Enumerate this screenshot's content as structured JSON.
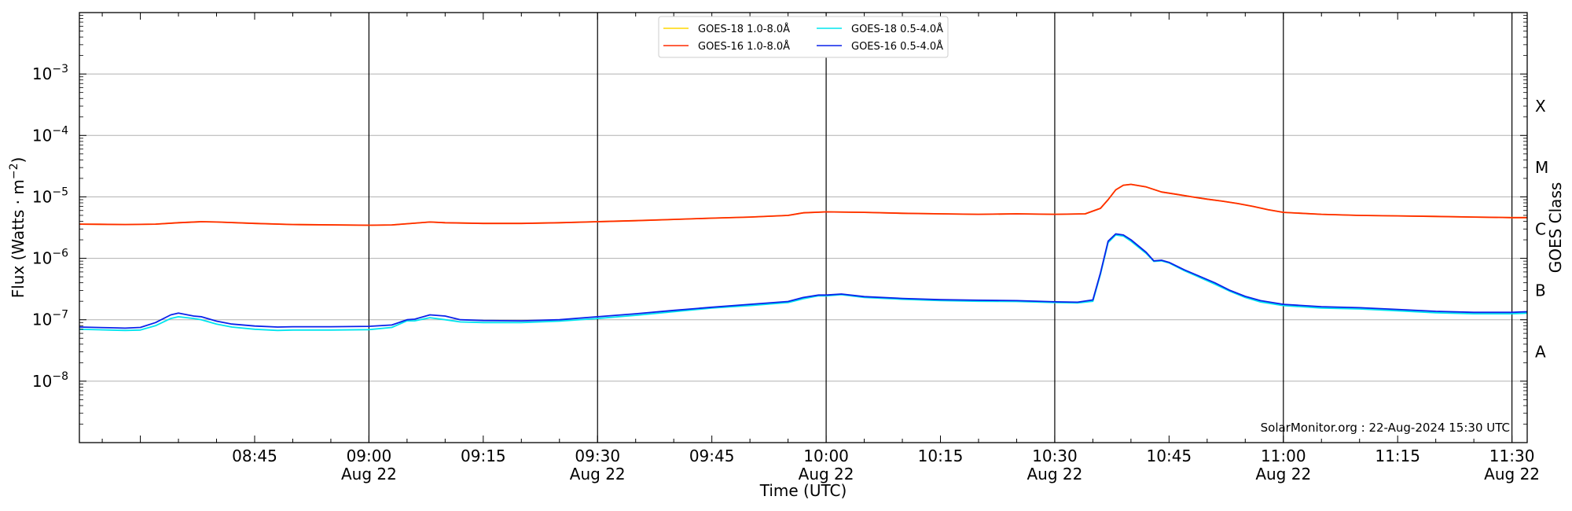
{
  "chart_data": {
    "type": "line",
    "title": "",
    "xlabel": "Time (UTC)",
    "ylabel": "Flux (Watts · m⁻²)",
    "y2label": "GOES Class",
    "yscale": "log",
    "ylim": [
      1e-09,
      0.01
    ],
    "xlim": [
      "08:22",
      "11:32"
    ],
    "grid": "horizontal",
    "legend_position": "top-center",
    "credit": "SolarMonitor.org : 22-Aug-2024 15:30 UTC",
    "ytick_labels": [
      {
        "value": 1e-08,
        "label": "10",
        "exp": "−8"
      },
      {
        "value": 1e-07,
        "label": "10",
        "exp": "−7"
      },
      {
        "value": 1e-06,
        "label": "10",
        "exp": "−6"
      },
      {
        "value": 1e-05,
        "label": "10",
        "exp": "−5"
      },
      {
        "value": 0.0001,
        "label": "10",
        "exp": "−4"
      },
      {
        "value": 0.001,
        "label": "10",
        "exp": "−3"
      }
    ],
    "xtick_labels": [
      {
        "time": "08:45",
        "label": "08:45",
        "date": ""
      },
      {
        "time": "09:00",
        "label": "09:00",
        "date": "Aug 22"
      },
      {
        "time": "09:15",
        "label": "09:15",
        "date": ""
      },
      {
        "time": "09:30",
        "label": "09:30",
        "date": "Aug 22"
      },
      {
        "time": "09:45",
        "label": "09:45",
        "date": ""
      },
      {
        "time": "10:00",
        "label": "10:00",
        "date": "Aug 22"
      },
      {
        "time": "10:15",
        "label": "10:15",
        "date": ""
      },
      {
        "time": "10:30",
        "label": "10:30",
        "date": "Aug 22"
      },
      {
        "time": "10:45",
        "label": "10:45",
        "date": ""
      },
      {
        "time": "11:00",
        "label": "11:00",
        "date": "Aug 22"
      },
      {
        "time": "11:15",
        "label": "11:15",
        "date": ""
      },
      {
        "time": "11:30",
        "label": "11:30",
        "date": "Aug 22"
      }
    ],
    "vertical_lines": [
      "09:00",
      "09:30",
      "10:00",
      "10:30",
      "11:00",
      "11:30"
    ],
    "goes_classes": [
      {
        "label": "A",
        "value": 3e-08
      },
      {
        "label": "B",
        "value": 3e-07
      },
      {
        "label": "C",
        "value": 3e-06
      },
      {
        "label": "M",
        "value": 3e-05
      },
      {
        "label": "X",
        "value": 0.0003
      }
    ],
    "series": [
      {
        "name": "GOES-18 1.0-8.0Å",
        "color": "#ffd700",
        "x": [
          "08:22",
          "08:28",
          "08:32",
          "08:35",
          "08:38",
          "08:40",
          "08:45",
          "08:50",
          "09:00",
          "09:03",
          "09:05",
          "09:08",
          "09:10",
          "09:15",
          "09:20",
          "09:25",
          "09:30",
          "09:35",
          "09:40",
          "09:45",
          "09:50",
          "09:55",
          "09:57",
          "10:00",
          "10:05",
          "10:10",
          "10:15",
          "10:20",
          "10:25",
          "10:30",
          "10:34",
          "10:36",
          "10:37",
          "10:38",
          "10:39",
          "10:40",
          "10:42",
          "10:44",
          "10:46",
          "10:48",
          "10:50",
          "10:52",
          "10:54",
          "10:56",
          "10:58",
          "11:00",
          "11:05",
          "11:10",
          "11:15",
          "11:20",
          "11:25",
          "11:30",
          "11:32"
        ],
        "y": [
          3.6e-06,
          3.55e-06,
          3.6e-06,
          3.8e-06,
          3.95e-06,
          3.9e-06,
          3.7e-06,
          3.55e-06,
          3.45e-06,
          3.5e-06,
          3.65e-06,
          3.9e-06,
          3.8e-06,
          3.7e-06,
          3.7e-06,
          3.8e-06,
          3.95e-06,
          4.1e-06,
          4.3e-06,
          4.5e-06,
          4.7e-06,
          5e-06,
          5.5e-06,
          5.7e-06,
          5.6e-06,
          5.4e-06,
          5.3e-06,
          5.2e-06,
          5.3e-06,
          5.2e-06,
          5.3e-06,
          6.5e-06,
          9e-06,
          1.3e-05,
          1.55e-05,
          1.6e-05,
          1.45e-05,
          1.2e-05,
          1.1e-05,
          1e-05,
          9.2e-06,
          8.5e-06,
          7.8e-06,
          7e-06,
          6.2e-06,
          5.6e-06,
          5.2e-06,
          5e-06,
          4.9e-06,
          4.8e-06,
          4.7e-06,
          4.6e-06,
          4.6e-06
        ]
      },
      {
        "name": "GOES-16 1.0-8.0Å",
        "color": "#ff2a00",
        "x": [
          "08:22",
          "08:28",
          "08:32",
          "08:35",
          "08:38",
          "08:40",
          "08:45",
          "08:50",
          "09:00",
          "09:03",
          "09:05",
          "09:08",
          "09:10",
          "09:15",
          "09:20",
          "09:25",
          "09:30",
          "09:35",
          "09:40",
          "09:45",
          "09:50",
          "09:55",
          "09:57",
          "10:00",
          "10:05",
          "10:10",
          "10:15",
          "10:20",
          "10:25",
          "10:30",
          "10:34",
          "10:36",
          "10:37",
          "10:38",
          "10:39",
          "10:40",
          "10:42",
          "10:44",
          "10:46",
          "10:48",
          "10:50",
          "10:52",
          "10:54",
          "10:56",
          "10:58",
          "11:00",
          "11:05",
          "11:10",
          "11:15",
          "11:20",
          "11:25",
          "11:30",
          "11:32"
        ],
        "y": [
          3.6e-06,
          3.55e-06,
          3.6e-06,
          3.8e-06,
          3.95e-06,
          3.9e-06,
          3.7e-06,
          3.55e-06,
          3.45e-06,
          3.5e-06,
          3.65e-06,
          3.9e-06,
          3.8e-06,
          3.7e-06,
          3.7e-06,
          3.8e-06,
          3.95e-06,
          4.1e-06,
          4.3e-06,
          4.5e-06,
          4.7e-06,
          5e-06,
          5.5e-06,
          5.7e-06,
          5.6e-06,
          5.4e-06,
          5.3e-06,
          5.2e-06,
          5.3e-06,
          5.2e-06,
          5.3e-06,
          6.5e-06,
          9e-06,
          1.3e-05,
          1.55e-05,
          1.6e-05,
          1.45e-05,
          1.2e-05,
          1.1e-05,
          1e-05,
          9.2e-06,
          8.5e-06,
          7.8e-06,
          7e-06,
          6.2e-06,
          5.6e-06,
          5.2e-06,
          5e-06,
          4.9e-06,
          4.8e-06,
          4.7e-06,
          4.6e-06,
          4.6e-06
        ]
      },
      {
        "name": "GOES-18 0.5-4.0Å",
        "color": "#00e5ee",
        "x": [
          "08:22",
          "08:26",
          "08:28",
          "08:30",
          "08:32",
          "08:34",
          "08:35",
          "08:37",
          "08:38",
          "08:40",
          "08:42",
          "08:45",
          "08:48",
          "08:50",
          "08:55",
          "09:00",
          "09:03",
          "09:05",
          "09:06",
          "09:08",
          "09:10",
          "09:12",
          "09:15",
          "09:20",
          "09:25",
          "09:30",
          "09:35",
          "09:40",
          "09:45",
          "09:50",
          "09:55",
          "09:57",
          "09:59",
          "10:00",
          "10:02",
          "10:05",
          "10:10",
          "10:15",
          "10:20",
          "10:25",
          "10:30",
          "10:33",
          "10:35",
          "10:36",
          "10:37",
          "10:38",
          "10:39",
          "10:40",
          "10:42",
          "10:43",
          "10:44",
          "10:45",
          "10:47",
          "10:49",
          "10:51",
          "10:53",
          "10:55",
          "10:57",
          "11:00",
          "11:05",
          "11:10",
          "11:15",
          "11:20",
          "11:25",
          "11:30",
          "11:32"
        ],
        "y": [
          7e-08,
          6.8e-08,
          6.7e-08,
          6.8e-08,
          8e-08,
          1.05e-07,
          1.12e-07,
          1.05e-07,
          1e-07,
          8.5e-08,
          7.6e-08,
          7e-08,
          6.7e-08,
          6.8e-08,
          6.8e-08,
          6.9e-08,
          7.5e-08,
          9.6e-08,
          9.6e-08,
          1.08e-07,
          1e-07,
          9.2e-08,
          9e-08,
          9e-08,
          9.5e-08,
          1.05e-07,
          1.18e-07,
          1.35e-07,
          1.55e-07,
          1.7e-07,
          1.9e-07,
          2.2e-07,
          2.45e-07,
          2.45e-07,
          2.55e-07,
          2.3e-07,
          2.15e-07,
          2.05e-07,
          2e-07,
          1.98e-07,
          1.9e-07,
          1.88e-07,
          2e-07,
          5.5e-07,
          1.8e-06,
          2.4e-06,
          2.3e-06,
          1.9e-06,
          1.2e-06,
          8.9e-07,
          9.1e-07,
          8.4e-07,
          6.3e-07,
          4.9e-07,
          3.8e-07,
          2.9e-07,
          2.3e-07,
          1.95e-07,
          1.7e-07,
          1.55e-07,
          1.5e-07,
          1.4e-07,
          1.3e-07,
          1.25e-07,
          1.25e-07,
          1.28e-07
        ]
      },
      {
        "name": "GOES-16 0.5-4.0Å",
        "color": "#0a22ea",
        "x": [
          "08:22",
          "08:26",
          "08:28",
          "08:30",
          "08:32",
          "08:34",
          "08:35",
          "08:37",
          "08:38",
          "08:40",
          "08:42",
          "08:45",
          "08:48",
          "08:50",
          "08:55",
          "09:00",
          "09:03",
          "09:05",
          "09:06",
          "09:08",
          "09:10",
          "09:12",
          "09:15",
          "09:20",
          "09:25",
          "09:30",
          "09:35",
          "09:40",
          "09:45",
          "09:50",
          "09:55",
          "09:57",
          "09:59",
          "10:00",
          "10:02",
          "10:05",
          "10:10",
          "10:15",
          "10:20",
          "10:25",
          "10:30",
          "10:33",
          "10:35",
          "10:36",
          "10:37",
          "10:38",
          "10:39",
          "10:40",
          "10:42",
          "10:43",
          "10:44",
          "10:45",
          "10:47",
          "10:49",
          "10:51",
          "10:53",
          "10:55",
          "10:57",
          "11:00",
          "11:05",
          "11:10",
          "11:15",
          "11:20",
          "11:25",
          "11:30",
          "11:32"
        ],
        "y": [
          7.6e-08,
          7.4e-08,
          7.3e-08,
          7.5e-08,
          9e-08,
          1.2e-07,
          1.28e-07,
          1.15e-07,
          1.12e-07,
          9.5e-08,
          8.5e-08,
          7.9e-08,
          7.6e-08,
          7.7e-08,
          7.7e-08,
          7.8e-08,
          8.2e-08,
          1e-07,
          1.02e-07,
          1.2e-07,
          1.15e-07,
          1e-07,
          9.7e-08,
          9.6e-08,
          1e-07,
          1.12e-07,
          1.25e-07,
          1.42e-07,
          1.6e-07,
          1.78e-07,
          1.98e-07,
          2.3e-07,
          2.52e-07,
          2.52e-07,
          2.62e-07,
          2.38e-07,
          2.22e-07,
          2.12e-07,
          2.08e-07,
          2.05e-07,
          1.96e-07,
          1.93e-07,
          2.1e-07,
          5.8e-07,
          1.9e-06,
          2.5e-06,
          2.4e-06,
          2e-06,
          1.25e-06,
          9.1e-07,
          9.3e-07,
          8.6e-07,
          6.5e-07,
          5.1e-07,
          4e-07,
          3e-07,
          2.4e-07,
          2.05e-07,
          1.78e-07,
          1.63e-07,
          1.57e-07,
          1.47e-07,
          1.37e-07,
          1.32e-07,
          1.32e-07,
          1.35e-07
        ]
      }
    ]
  }
}
